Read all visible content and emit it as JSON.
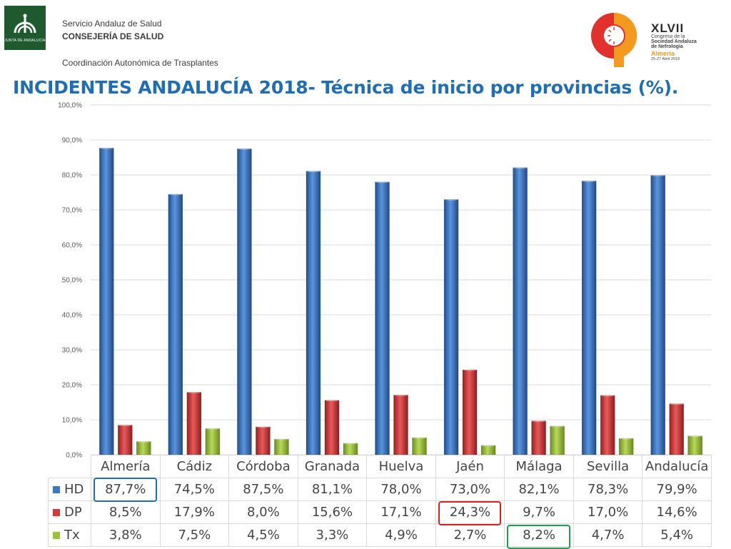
{
  "header": {
    "logo_left_text": "JUNTA DE ANDALUCIA",
    "org_line1": "Servicio Andaluz de Salud",
    "org_line2": "CONSEJERÍA DE SALUD",
    "org_line3": "Coordinación Autonómica de Trasplantes",
    "congress_numeral": "XLVII",
    "congress_line1": "Congreso de la",
    "congress_line2": "Sociedad Andaluza",
    "congress_line3": "de Nefrología",
    "congress_city": "Almería",
    "congress_dates": "25-27 Abril 2019"
  },
  "title": "INCIDENTES ANDALUCÍA 2018- Técnica de inicio por provincias (%).",
  "chart_data": {
    "type": "bar",
    "title": "INCIDENTES ANDALUCÍA 2018- Técnica de inicio por provincias (%).",
    "categories": [
      "Almería",
      "Cádiz",
      "Córdoba",
      "Granada",
      "Huelva",
      "Jaén",
      "Málaga",
      "Sevilla",
      "Andalucía"
    ],
    "series": [
      {
        "name": "HD",
        "values": [
          87.7,
          74.5,
          87.5,
          81.1,
          78.0,
          73.0,
          82.1,
          78.3,
          79.9
        ],
        "labels": [
          "87,7%",
          "74,5%",
          "87,5%",
          "81,1%",
          "78,0%",
          "73,0%",
          "82,1%",
          "78,3%",
          "79,9%"
        ]
      },
      {
        "name": "DP",
        "values": [
          8.5,
          17.9,
          8.0,
          15.6,
          17.1,
          24.3,
          9.7,
          17.0,
          14.6
        ],
        "labels": [
          "8,5%",
          "17,9%",
          "8,0%",
          "15,6%",
          "17,1%",
          "24,3%",
          "9,7%",
          "17,0%",
          "14,6%"
        ]
      },
      {
        "name": "Tx",
        "values": [
          3.8,
          7.5,
          4.5,
          3.3,
          4.9,
          2.7,
          8.2,
          4.7,
          5.4
        ],
        "labels": [
          "3,8%",
          "7,5%",
          "4,5%",
          "3,3%",
          "4,9%",
          "2,7%",
          "8,2%",
          "4,7%",
          "5,4%"
        ]
      }
    ],
    "colors": {
      "HD": "#3a78c9",
      "DP": "#d43a3a",
      "Tx": "#9bc23b"
    },
    "ylim": [
      0,
      100
    ],
    "yticks": [
      0,
      10,
      20,
      30,
      40,
      50,
      60,
      70,
      80,
      90,
      100
    ],
    "ytick_labels": [
      "0,0%",
      "10,0%",
      "20,0%",
      "30,0%",
      "40,0%",
      "50,0%",
      "60,0%",
      "70,0%",
      "80,0%",
      "90,0%",
      "100,0%"
    ],
    "grid": true,
    "legend": "data table below chart",
    "highlights": [
      {
        "series": "HD",
        "category": "Almería",
        "color": "#1f6db5"
      },
      {
        "series": "DP",
        "category": "Jaén",
        "color": "#e02020"
      },
      {
        "series": "Tx",
        "category": "Málaga",
        "color": "#1aa34a"
      }
    ]
  }
}
